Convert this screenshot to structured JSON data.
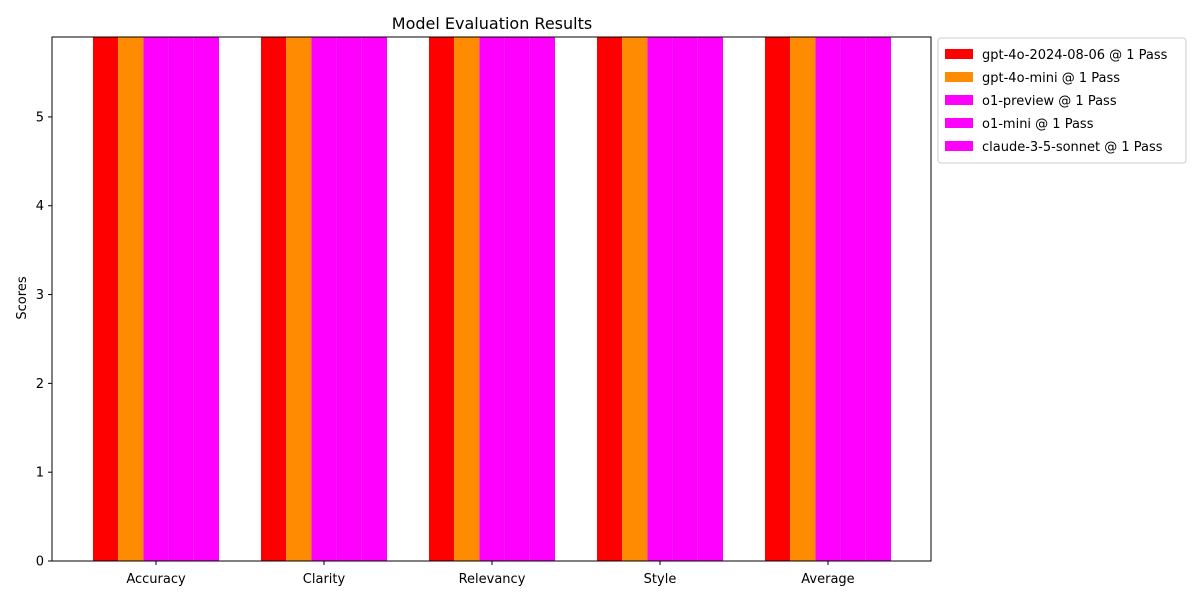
{
  "chart_data": {
    "type": "bar",
    "title": "Model Evaluation Results",
    "xlabel": "",
    "ylabel": "Scores",
    "categories": [
      "Accuracy",
      "Clarity",
      "Relevancy",
      "Style",
      "Average"
    ],
    "ylim": [
      0,
      5.9
    ],
    "yticks": [
      0,
      1,
      2,
      3,
      4,
      5
    ],
    "grid": false,
    "legend_position": "outside-top-right",
    "series": [
      {
        "name": "gpt-4o-2024-08-06 @ 1 Pass",
        "color": "#ff0000",
        "values": [
          5.9,
          5.9,
          5.9,
          5.9,
          5.9
        ]
      },
      {
        "name": "gpt-4o-mini @ 1 Pass",
        "color": "#ff8c00",
        "values": [
          5.9,
          5.9,
          5.9,
          5.9,
          5.9
        ]
      },
      {
        "name": "o1-preview @ 1 Pass",
        "color": "#ff00ff",
        "values": [
          5.9,
          5.9,
          5.9,
          5.9,
          5.9
        ]
      },
      {
        "name": "o1-mini @ 1 Pass",
        "color": "#ff00ff",
        "values": [
          5.9,
          5.9,
          5.9,
          5.9,
          5.9
        ]
      },
      {
        "name": "claude-3-5-sonnet @ 1 Pass",
        "color": "#ff00ff",
        "values": [
          5.9,
          5.9,
          5.9,
          5.9,
          5.9
        ]
      }
    ]
  }
}
